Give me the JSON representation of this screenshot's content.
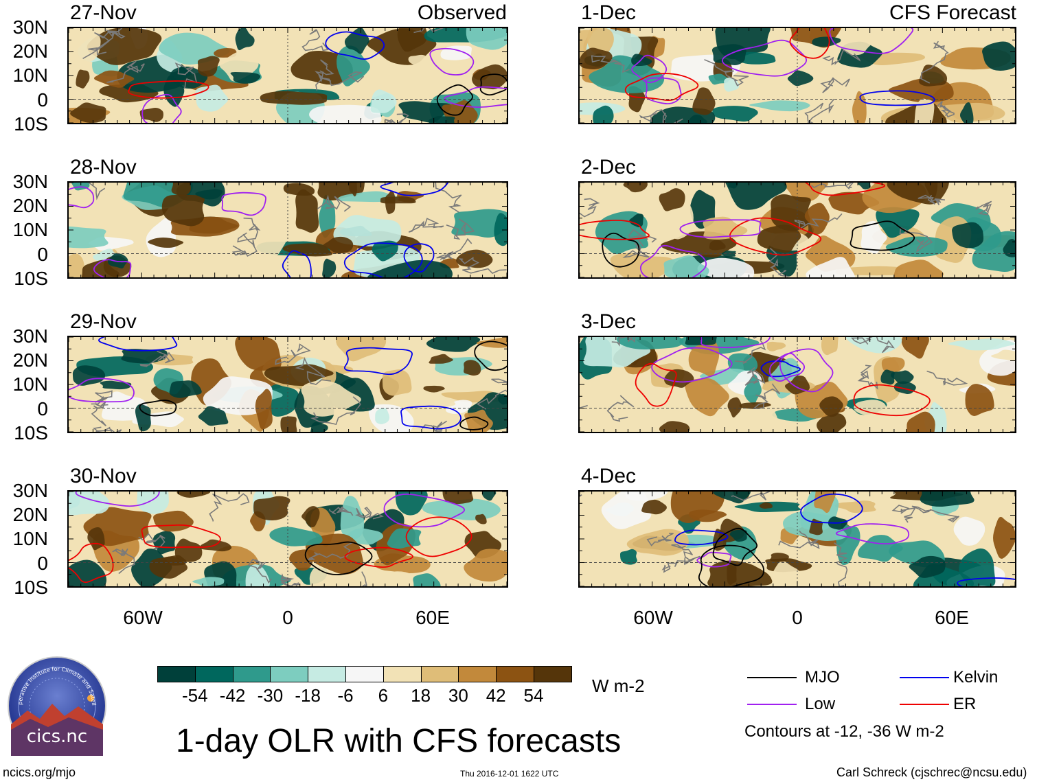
{
  "chart_data": {
    "type": "heatmap",
    "title": "1-day OLR with CFS forecasts",
    "left_column_label": "Observed",
    "right_column_label": "CFS Forecast",
    "panels_left": [
      "27-Nov",
      "28-Nov",
      "29-Nov",
      "30-Nov"
    ],
    "panels_right": [
      "1-Dec",
      "2-Dec",
      "3-Dec",
      "4-Dec"
    ],
    "lat_ticks": [
      "30N",
      "20N",
      "10N",
      "0",
      "10S"
    ],
    "lon_ticks": [
      "60W",
      "0",
      "60E"
    ],
    "colorbar": {
      "units": "W m-2",
      "labels": [
        "-54",
        "-42",
        "-30",
        "-18",
        "-6",
        "6",
        "18",
        "30",
        "42",
        "54"
      ],
      "colors": [
        "#00403a",
        "#00675d",
        "#2f9a8c",
        "#7dcdbf",
        "#c6ebe3",
        "#f6f6f6",
        "#f2e2b6",
        "#dfbd78",
        "#c2893b",
        "#8c5312",
        "#55350a"
      ]
    },
    "legend": [
      {
        "name": "MJO",
        "color": "#000000"
      },
      {
        "name": "Kelvin",
        "color": "#0000ee"
      },
      {
        "name": "Low",
        "color": "#a020f0"
      },
      {
        "name": "ER",
        "color": "#ee0000"
      }
    ],
    "contour_note": "Contours at -12, -36 W m-2"
  },
  "footer": {
    "left_url": "ncics.org/mjo",
    "timestamp": "Thu 2016-12-01 1622 UTC",
    "credit": "Carl Schreck (cjschrec@ncsu.edu)"
  },
  "logo": {
    "text": "cics.nc",
    "ring_text": "Cooperative Institute for Climate and Satellites"
  }
}
